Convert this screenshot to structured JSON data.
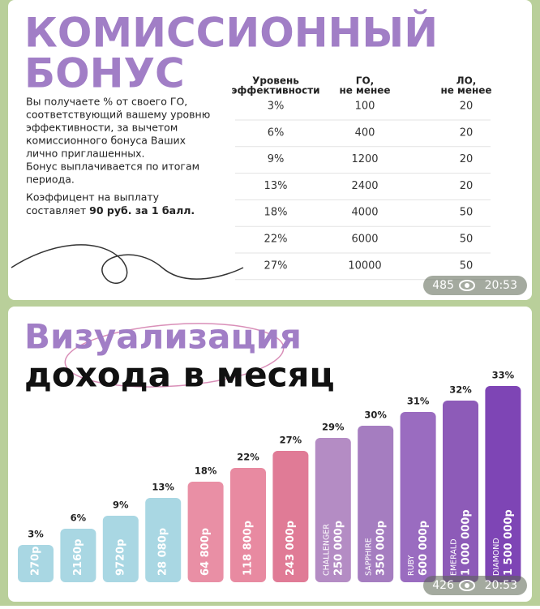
{
  "posts": [
    {
      "title_lines": [
        "КОМИССИОННЫЙ",
        "БОНУС"
      ],
      "paragraph_lines": [
        "Вы получаете % от своего ГО,",
        "соответствующий вашему уровню",
        "эффективности, за вычетом",
        "комиссионного бонуса Ваших",
        "лично приглашенных.",
        "Бонус выплачивается по итогам",
        "периода."
      ],
      "note_lines": [
        "Коэффицент на выплату"
      ],
      "note_prefix": "составляет ",
      "note_bold": "90 руб. за 1 балл.",
      "table": {
        "columns": [
          [
            "Уровень",
            "эффективности"
          ],
          [
            "ГО,",
            "не менее"
          ],
          [
            "ЛО,",
            "не менее"
          ]
        ],
        "rows": [
          [
            "3%",
            "100",
            "20"
          ],
          [
            "6%",
            "400",
            "20"
          ],
          [
            "9%",
            "1200",
            "20"
          ],
          [
            "13%",
            "2400",
            "20"
          ],
          [
            "18%",
            "4000",
            "50"
          ],
          [
            "22%",
            "6000",
            "50"
          ],
          [
            "27%",
            "10000",
            "50"
          ]
        ]
      },
      "views": "485",
      "time": "20:53"
    },
    {
      "title_lines": [
        "Визуализация",
        "дохода в месяц"
      ],
      "bars": [
        {
          "percent": "3%",
          "amount": "270р"
        },
        {
          "percent": "6%",
          "amount": "2160р"
        },
        {
          "percent": "9%",
          "amount": "9720р"
        },
        {
          "percent": "13%",
          "amount": "28 080р"
        },
        {
          "percent": "18%",
          "amount": "64 800р"
        },
        {
          "percent": "22%",
          "amount": "118 800р"
        },
        {
          "percent": "27%",
          "amount": "243 000р"
        },
        {
          "percent": "29%",
          "level": "CHALLENGER",
          "amount": "250 000р"
        },
        {
          "percent": "30%",
          "level": "SAPPHIRE",
          "amount": "350 000р"
        },
        {
          "percent": "31%",
          "level": "RUBY",
          "amount": "600 000р"
        },
        {
          "percent": "32%",
          "level": "EMERALD",
          "amount": "1 000 000р"
        },
        {
          "percent": "33%",
          "level": "DIAMOND",
          "amount": "1 500 000р"
        }
      ],
      "views": "426",
      "time": "20:53"
    }
  ]
}
